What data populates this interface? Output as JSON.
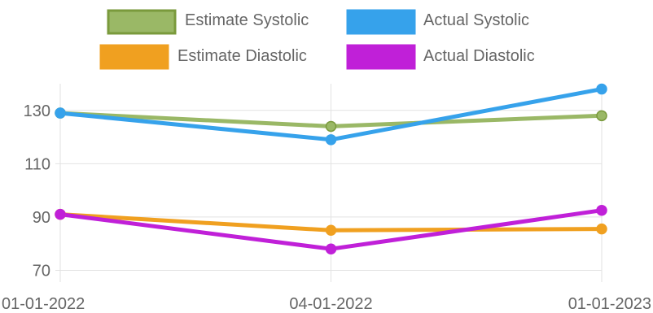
{
  "chart_data": {
    "type": "line",
    "x": [
      "01-01-2022",
      "04-01-2022",
      "01-01-2023"
    ],
    "series": [
      {
        "name": "Estimate Systolic",
        "color": "#7a9a3c",
        "fill": "#9ab866",
        "values": [
          129,
          124,
          128
        ]
      },
      {
        "name": "Actual Systolic",
        "color": "#36a2eb",
        "fill": "#36a2eb",
        "values": [
          129,
          119,
          138
        ]
      },
      {
        "name": "Estimate Diastolic",
        "color": "#f0a020",
        "fill": "#f0a020",
        "values": [
          91,
          85,
          85.5
        ]
      },
      {
        "name": "Actual Diastolic",
        "color": "#c020d8",
        "fill": "#c020d8",
        "values": [
          91,
          78,
          92.5
        ]
      }
    ],
    "y_ticks": [
      "130",
      "110",
      "90",
      "70"
    ],
    "ylim": [
      68,
      140
    ],
    "grid": true,
    "legend_position": "top"
  }
}
